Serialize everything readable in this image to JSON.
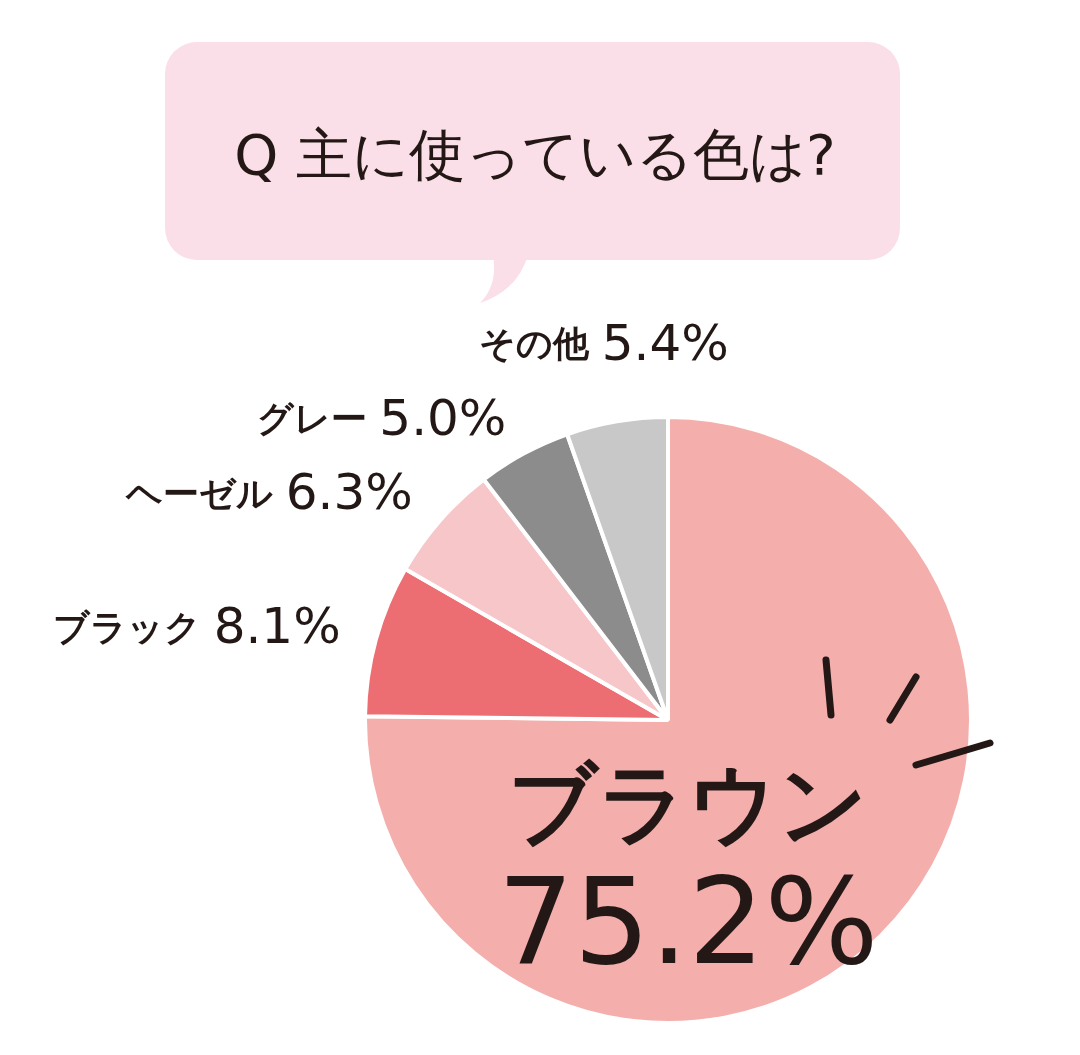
{
  "chart_data": {
    "type": "pie",
    "title": "Q 主に使っている色は?",
    "categories": [
      "ブラウン",
      "ブラック",
      "ヘーゼル",
      "グレー",
      "その他"
    ],
    "values": [
      75.2,
      8.1,
      6.3,
      5.0,
      5.4
    ],
    "colors": [
      "#f4aeab",
      "#ec6e73",
      "#f6c6c8",
      "#8c8c8c",
      "#c8c8c8"
    ],
    "value_labels": [
      "75.2%",
      "8.1%",
      "6.3%",
      "5.0%",
      "5.4%"
    ],
    "legend": false
  }
}
